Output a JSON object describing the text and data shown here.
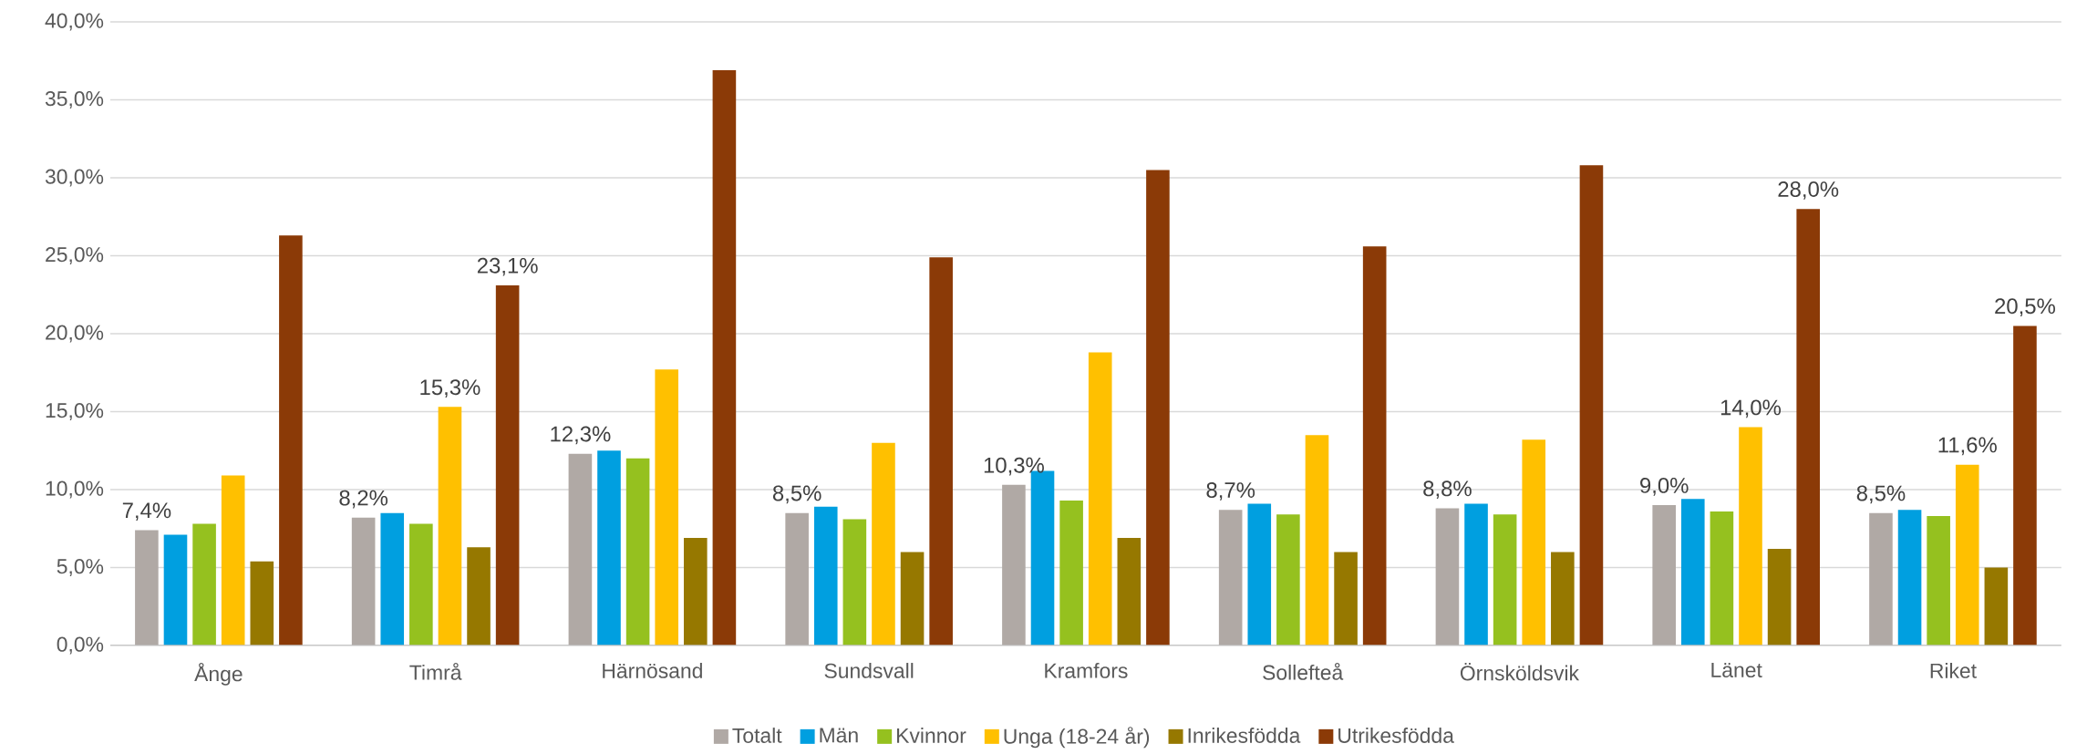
{
  "chart_data": {
    "type": "bar",
    "categories": [
      "Ånge",
      "Timrå",
      "Härnösand",
      "Sundsvall",
      "Kramfors",
      "Sollefteå",
      "Örnsköldsvik",
      "Länet",
      "Riket"
    ],
    "series": [
      {
        "name": "Totalt",
        "color": "#b0a9a5",
        "values": [
          7.4,
          8.2,
          12.3,
          8.5,
          10.3,
          8.7,
          8.8,
          9.0,
          8.5
        ],
        "value_labels": [
          "7,4%",
          "8,2%",
          "12,3%",
          "8,5%",
          "10,3%",
          "8,7%",
          "8,8%",
          "9,0%",
          "8,5%"
        ]
      },
      {
        "name": "Män",
        "color": "#009fe0",
        "values": [
          7.1,
          8.5,
          12.5,
          8.9,
          11.2,
          9.1,
          9.1,
          9.4,
          8.7
        ]
      },
      {
        "name": "Kvinnor",
        "color": "#95c11f",
        "values": [
          7.8,
          7.8,
          12.0,
          8.1,
          9.3,
          8.4,
          8.4,
          8.6,
          8.3
        ]
      },
      {
        "name": "Unga (18-24 år)",
        "color": "#ffc000",
        "values": [
          10.9,
          15.3,
          17.7,
          13.0,
          18.8,
          13.5,
          13.2,
          14.0,
          11.6
        ],
        "value_labels": [
          null,
          "15,3%",
          null,
          null,
          null,
          null,
          null,
          "14,0%",
          "11,6%"
        ]
      },
      {
        "name": "Inrikesfödda",
        "color": "#967800",
        "values": [
          5.4,
          6.3,
          6.9,
          6.0,
          6.9,
          6.0,
          6.0,
          6.2,
          5.0
        ]
      },
      {
        "name": "Utrikesfödda",
        "color": "#8b3a07",
        "values": [
          26.3,
          23.1,
          36.9,
          24.9,
          30.5,
          25.6,
          30.8,
          28.0,
          20.5
        ],
        "value_labels": [
          null,
          "23,1%",
          null,
          null,
          null,
          null,
          null,
          "28,0%",
          "20,5%"
        ]
      }
    ],
    "ylim": [
      0,
      40
    ],
    "yticks": [
      {
        "value": 0,
        "label": "0,0%"
      },
      {
        "value": 5,
        "label": "5,0%"
      },
      {
        "value": 10,
        "label": "10,0%"
      },
      {
        "value": 15,
        "label": "15,0%"
      },
      {
        "value": 20,
        "label": "20,0%"
      },
      {
        "value": 25,
        "label": "25,0%"
      },
      {
        "value": 30,
        "label": "30,0%"
      },
      {
        "value": 35,
        "label": "35,0%"
      },
      {
        "value": 40,
        "label": "40,0%"
      }
    ],
    "grid": "y",
    "legend": "bottom"
  }
}
